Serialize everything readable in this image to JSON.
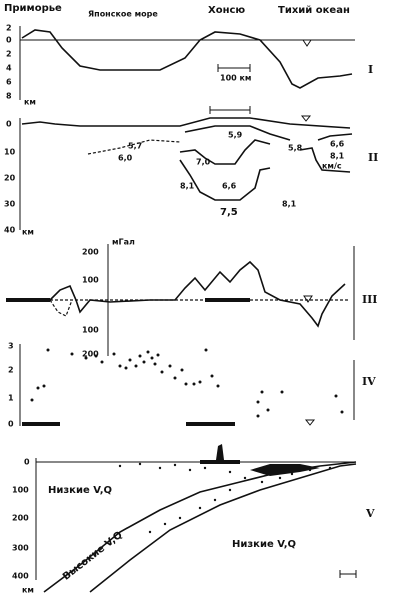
{
  "header": {
    "labels": [
      "Приморье",
      "Японское море",
      "Хонсю",
      "Тихий океан"
    ]
  },
  "panels": [
    {
      "roman": "I",
      "ticks": [
        "2",
        "0",
        "2",
        "4",
        "6",
        "8"
      ],
      "unit": "км",
      "scale": "100 км"
    },
    {
      "roman": "II",
      "ticks": [
        "0",
        "10",
        "20",
        "30",
        "40"
      ],
      "unit": "км",
      "velocities": [
        "5,7",
        "6,0",
        "5,9",
        "7,0",
        "5,8",
        "6,6",
        "8,1",
        "8,1",
        "6,6",
        "7,5",
        "8,1"
      ],
      "velocity_unit": "км/с"
    },
    {
      "roman": "III",
      "ticks": [
        "200",
        "100",
        "100",
        "200"
      ],
      "unit": "мГал"
    },
    {
      "roman": "IV",
      "ticks": [
        "3",
        "2",
        "1",
        "0"
      ]
    },
    {
      "roman": "V",
      "ticks": [
        "0",
        "100",
        "200",
        "300",
        "400"
      ],
      "unit": "км",
      "regions": [
        "Низкие V,Q",
        "Низкие V,Q",
        "Высокие V,Q"
      ]
    }
  ]
}
